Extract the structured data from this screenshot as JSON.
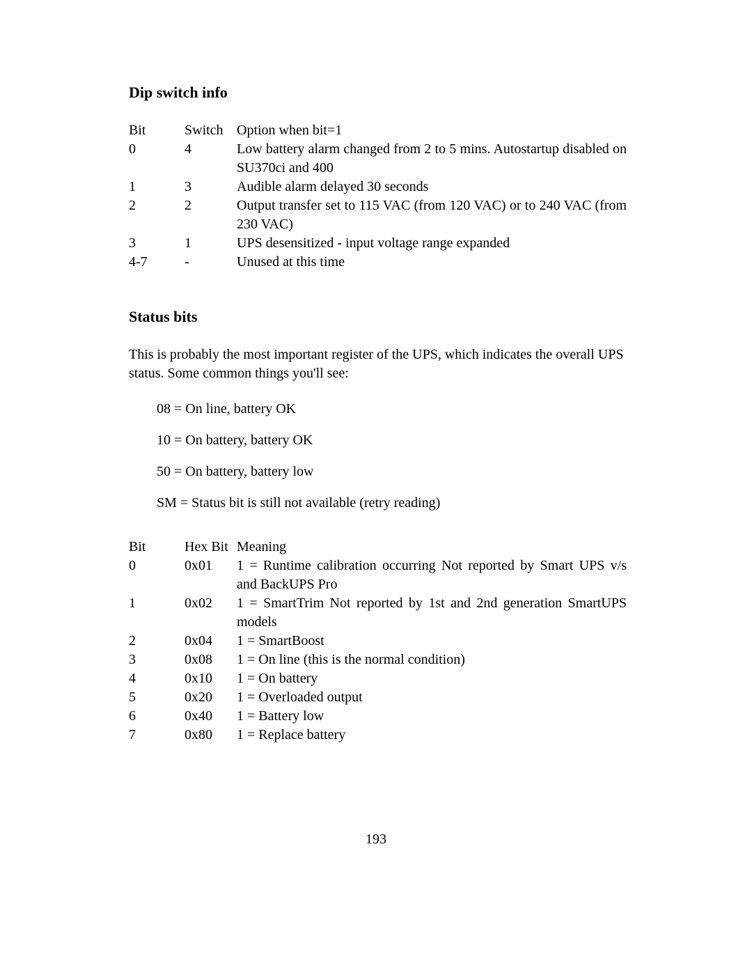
{
  "dip_switch": {
    "heading": "Dip switch info",
    "header": {
      "bit": "Bit",
      "switch": "Switch",
      "desc": "Option when bit=1"
    },
    "rows": [
      {
        "bit": "0",
        "switch": "4",
        "desc": "Low battery alarm changed from 2 to 5 mins.  Autostartup disabled on SU370ci and 400"
      },
      {
        "bit": "1",
        "switch": "3",
        "desc": "Audible alarm delayed 30 seconds"
      },
      {
        "bit": "2",
        "switch": "2",
        "desc": "Output transfer set to 115 VAC (from 120 VAC) or to 240 VAC (from 230 VAC)"
      },
      {
        "bit": "3",
        "switch": "1",
        "desc": "UPS desensitized - input voltage range expanded"
      },
      {
        "bit": "4-7",
        "switch": "-",
        "desc": "Unused at this time"
      }
    ]
  },
  "status_bits": {
    "heading": "Status bits",
    "intro": "This is probably the most important register of the UPS, which indicates the overall UPS status. Some common things you'll see:",
    "common": [
      "08 = On line, battery OK",
      "10 = On battery, battery OK",
      "50 = On battery, battery low",
      "SM = Status bit is still not available (retry reading)"
    ],
    "header": {
      "bit": "Bit",
      "hex": "Hex Bit",
      "desc": "Meaning"
    },
    "rows": [
      {
        "bit": "0",
        "hex": "0x01",
        "desc": "1 = Runtime calibration occurring Not reported by Smart UPS v/s and BackUPS Pro"
      },
      {
        "bit": "1",
        "hex": "0x02",
        "desc": "1 = SmartTrim Not reported by 1st and 2nd generation SmartUPS models"
      },
      {
        "bit": "2",
        "hex": "0x04",
        "desc": "1 = SmartBoost"
      },
      {
        "bit": "3",
        "hex": "0x08",
        "desc": "1 = On line (this is the normal condition)"
      },
      {
        "bit": "4",
        "hex": "0x10",
        "desc": "1 = On battery"
      },
      {
        "bit": "5",
        "hex": "0x20",
        "desc": "1 = Overloaded output"
      },
      {
        "bit": "6",
        "hex": "0x40",
        "desc": "1 = Battery low"
      },
      {
        "bit": "7",
        "hex": "0x80",
        "desc": "1 = Replace battery"
      }
    ]
  },
  "page_number": "193"
}
